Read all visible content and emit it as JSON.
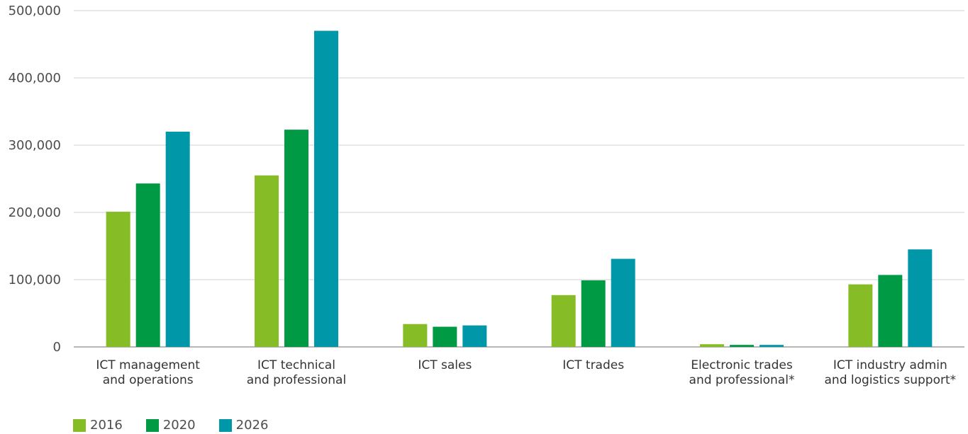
{
  "chart_data": {
    "type": "bar",
    "categories": [
      [
        "ICT management",
        "and operations"
      ],
      [
        "ICT technical",
        "and professional"
      ],
      [
        "ICT sales"
      ],
      [
        "ICT trades"
      ],
      [
        "Electronic trades",
        "and professional*"
      ],
      [
        "ICT industry admin",
        "and logistics support*"
      ]
    ],
    "series": [
      {
        "name": "2016",
        "color": "#86bc25",
        "values": [
          201000,
          255000,
          34000,
          77000,
          4000,
          93000
        ]
      },
      {
        "name": "2020",
        "color": "#009a44",
        "values": [
          243000,
          323000,
          30000,
          99000,
          3000,
          107000
        ]
      },
      {
        "name": "2026",
        "color": "#0097a9",
        "values": [
          320000,
          470000,
          32000,
          131000,
          3000,
          145000
        ]
      }
    ],
    "y_ticks": [
      "0",
      "100,000",
      "200,000",
      "300,000",
      "400,000",
      "500,000"
    ],
    "y_tick_values": [
      0,
      100000,
      200000,
      300000,
      400000,
      500000
    ],
    "ylim": [
      0,
      500000
    ],
    "grid": true,
    "legend_position": "bottom-left",
    "title": "",
    "xlabel": "",
    "ylabel": ""
  }
}
